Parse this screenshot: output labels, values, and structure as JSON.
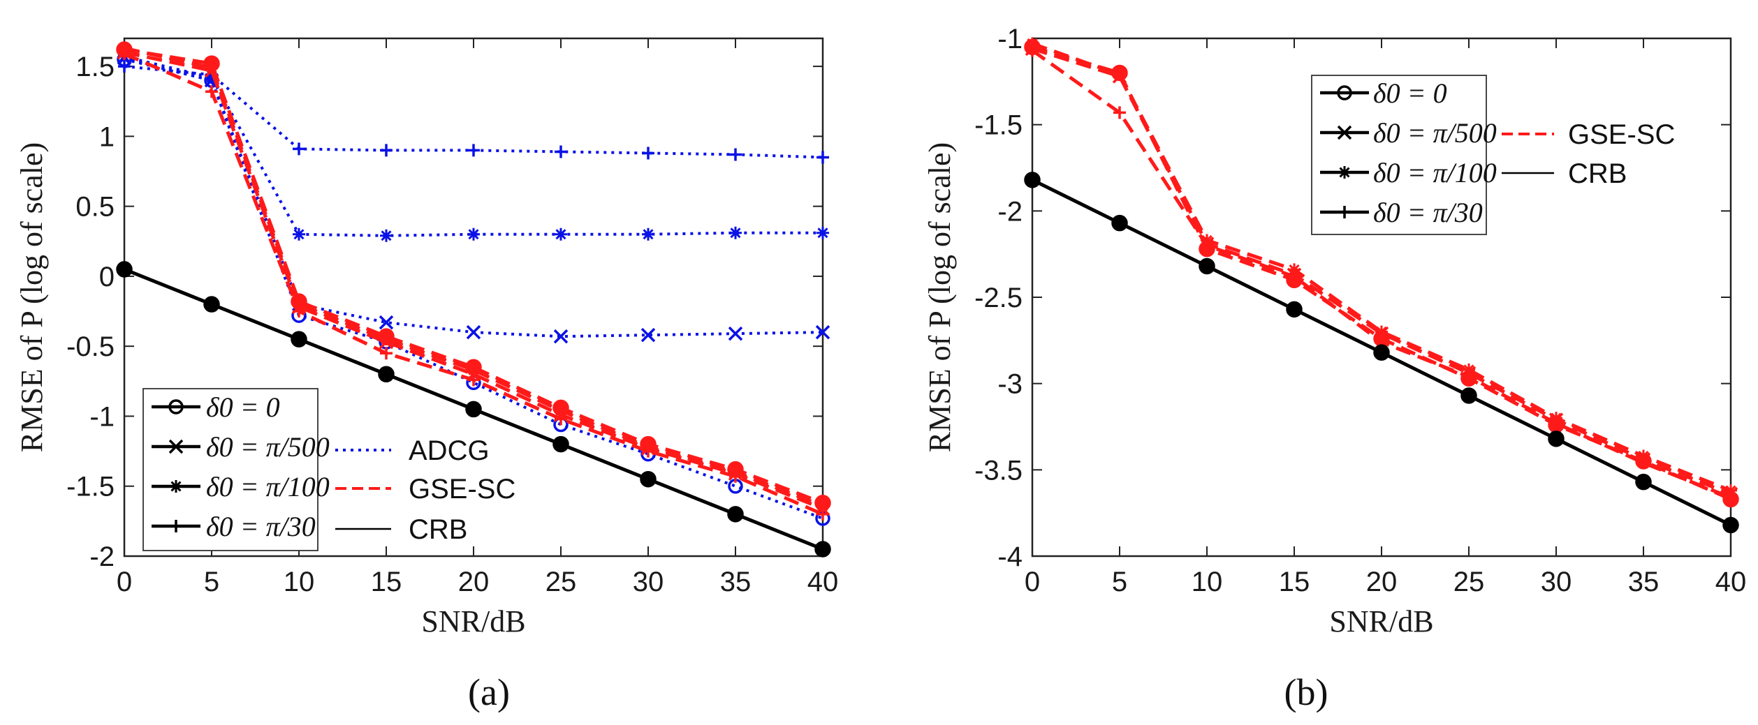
{
  "figure": {
    "panel_labels": [
      "(a)",
      "(b)"
    ]
  },
  "colors": {
    "adcg": "#0a12e6",
    "gse_sc": "#ff1a1a",
    "crb": "#000000"
  },
  "chart_data": [
    {
      "type": "line",
      "panel": "(a)",
      "xlabel": "SNR/dB",
      "ylabel": "RMSE of P (log of scale)",
      "xlim": [
        0,
        40
      ],
      "ylim": [
        -2,
        1.7
      ],
      "xticks": [
        0,
        5,
        10,
        15,
        20,
        25,
        30,
        35,
        40
      ],
      "yticks": [
        -2,
        -1.5,
        -1,
        -0.5,
        0,
        0.5,
        1,
        1.5
      ],
      "ytick_labels": [
        "-2",
        "-1.5",
        "-1",
        "-0.5",
        "0",
        "0.5",
        "1",
        "1.5"
      ],
      "x": [
        0,
        5,
        10,
        15,
        20,
        25,
        30,
        35,
        40
      ],
      "legend_markers": [
        {
          "marker": "circle",
          "label": "δ0 = 0"
        },
        {
          "marker": "x",
          "label": "δ0 = π/500"
        },
        {
          "marker": "star",
          "label": "δ0 = π/100"
        },
        {
          "marker": "plus",
          "label": "δ0 = π/30"
        }
      ],
      "legend_methods": [
        {
          "style": "dotted",
          "color": "#0a12e6",
          "label": "ADCG"
        },
        {
          "style": "dashed",
          "color": "#ff1a1a",
          "label": "GSE-SC"
        },
        {
          "style": "solid",
          "color": "#000000",
          "label": "CRB"
        }
      ],
      "series": [
        {
          "name": "ADCG δ0=0",
          "method": "ADCG",
          "marker": "circle",
          "values": [
            1.55,
            1.4,
            -0.28,
            -0.47,
            -0.76,
            -1.06,
            -1.27,
            -1.5,
            -1.73
          ]
        },
        {
          "name": "ADCG δ0=π/500",
          "method": "ADCG",
          "marker": "x",
          "values": [
            1.56,
            1.4,
            -0.2,
            -0.33,
            -0.4,
            -0.43,
            -0.42,
            -0.41,
            -0.4
          ]
        },
        {
          "name": "ADCG δ0=π/100",
          "method": "ADCG",
          "marker": "star",
          "values": [
            1.57,
            1.42,
            0.3,
            0.29,
            0.3,
            0.3,
            0.3,
            0.31,
            0.31
          ]
        },
        {
          "name": "ADCG δ0=π/30",
          "method": "ADCG",
          "marker": "plus",
          "values": [
            1.5,
            1.44,
            0.91,
            0.9,
            0.9,
            0.89,
            0.88,
            0.87,
            0.85
          ]
        },
        {
          "name": "GSE-SC δ0=0",
          "method": "GSE-SC",
          "marker": "circle",
          "values": [
            1.62,
            1.52,
            -0.18,
            -0.43,
            -0.65,
            -0.94,
            -1.2,
            -1.38,
            -1.62
          ]
        },
        {
          "name": "GSE-SC δ0=π/500",
          "method": "GSE-SC",
          "marker": "x",
          "values": [
            1.6,
            1.47,
            -0.22,
            -0.47,
            -0.7,
            -0.99,
            -1.23,
            -1.41,
            -1.66
          ]
        },
        {
          "name": "GSE-SC δ0=π/100",
          "method": "GSE-SC",
          "marker": "star",
          "values": [
            1.63,
            1.49,
            -0.2,
            -0.45,
            -0.67,
            -0.96,
            -1.22,
            -1.4,
            -1.64
          ]
        },
        {
          "name": "GSE-SC δ0=π/30",
          "method": "GSE-SC",
          "marker": "plus",
          "values": [
            1.59,
            1.32,
            -0.25,
            -0.55,
            -0.74,
            -1.02,
            -1.25,
            -1.43,
            -1.7
          ]
        },
        {
          "name": "CRB",
          "method": "CRB",
          "marker": "circle",
          "values": [
            0.05,
            -0.2,
            -0.45,
            -0.7,
            -0.95,
            -1.2,
            -1.45,
            -1.7,
            -1.95
          ]
        }
      ]
    },
    {
      "type": "line",
      "panel": "(b)",
      "xlabel": "SNR/dB",
      "ylabel": "RMSE of P (log of scale)",
      "xlim": [
        0,
        40
      ],
      "ylim": [
        -4,
        -1
      ],
      "xticks": [
        0,
        5,
        10,
        15,
        20,
        25,
        30,
        35,
        40
      ],
      "yticks": [
        -4,
        -3.5,
        -3,
        -2.5,
        -2,
        -1.5,
        -1
      ],
      "ytick_labels": [
        "-4",
        "-3.5",
        "-3",
        "-2.5",
        "-2",
        "-1.5",
        "-1"
      ],
      "x": [
        0,
        5,
        10,
        15,
        20,
        25,
        30,
        35,
        40
      ],
      "legend_markers": [
        {
          "marker": "circle",
          "label": "δ0 = 0"
        },
        {
          "marker": "x",
          "label": "δ0 = π/500"
        },
        {
          "marker": "star",
          "label": "δ0 = π/100"
        },
        {
          "marker": "plus",
          "label": "δ0 = π/30"
        }
      ],
      "legend_methods": [
        {
          "style": "dashed",
          "color": "#ff1a1a",
          "label": "GSE-SC"
        },
        {
          "style": "solid",
          "color": "#000000",
          "label": "CRB"
        }
      ],
      "series": [
        {
          "name": "GSE-SC δ0=0",
          "method": "GSE-SC",
          "marker": "circle",
          "values": [
            -1.05,
            -1.2,
            -2.22,
            -2.4,
            -2.74,
            -2.97,
            -3.24,
            -3.45,
            -3.67
          ]
        },
        {
          "name": "GSE-SC δ0=π/500",
          "method": "GSE-SC",
          "marker": "x",
          "values": [
            -1.06,
            -1.22,
            -2.19,
            -2.37,
            -2.71,
            -2.94,
            -3.21,
            -3.44,
            -3.64
          ]
        },
        {
          "name": "GSE-SC δ0=π/100",
          "method": "GSE-SC",
          "marker": "star",
          "values": [
            -1.03,
            -1.21,
            -2.17,
            -2.34,
            -2.7,
            -2.92,
            -3.2,
            -3.42,
            -3.62
          ]
        },
        {
          "name": "GSE-SC δ0=π/30",
          "method": "GSE-SC",
          "marker": "plus",
          "values": [
            -1.07,
            -1.43,
            -2.2,
            -2.38,
            -2.76,
            -2.96,
            -3.23,
            -3.46,
            -3.66
          ]
        },
        {
          "name": "CRB",
          "method": "CRB",
          "marker": "circle",
          "values": [
            -1.82,
            -2.07,
            -2.32,
            -2.57,
            -2.82,
            -3.07,
            -3.32,
            -3.57,
            -3.82
          ]
        }
      ]
    }
  ]
}
